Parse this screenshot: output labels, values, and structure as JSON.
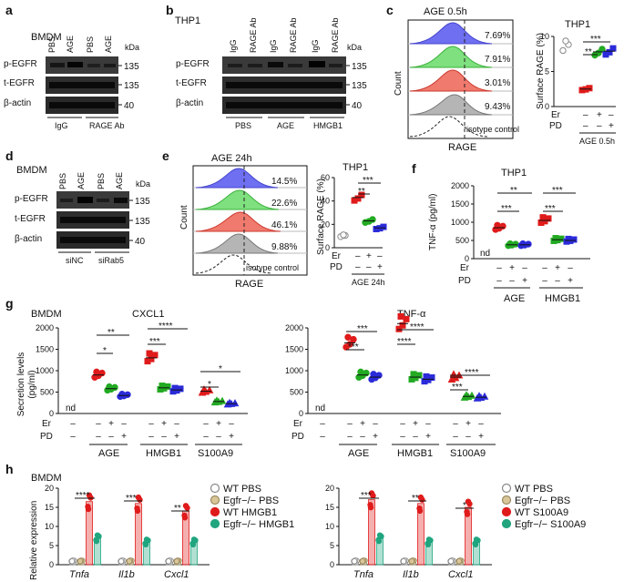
{
  "panels": {
    "a": {
      "letter": "a",
      "cell": "BMDM",
      "kda": "kDa",
      "lanes": [
        "PBS",
        "AGE",
        "PBS",
        "AGE"
      ],
      "rows": [
        {
          "name": "p-EGFR",
          "mw": "135"
        },
        {
          "name": "t-EGFR",
          "mw": "135"
        },
        {
          "name": "β-actin",
          "mw": "40"
        }
      ],
      "groups": [
        "IgG",
        "RAGE  Ab"
      ]
    },
    "b": {
      "letter": "b",
      "cell": "THP1",
      "kda": "kDa",
      "lanes": [
        "IgG",
        "RAGE Ab",
        "IgG",
        "RAGE Ab",
        "IgG",
        "RAGE Ab"
      ],
      "rows": [
        {
          "name": "p-EGFR",
          "mw": "135"
        },
        {
          "name": "t-EGFR",
          "mw": "135"
        },
        {
          "name": "β-actin",
          "mw": "40"
        }
      ],
      "groups": [
        "PBS",
        "AGE",
        "HMGB1"
      ]
    },
    "c": {
      "letter": "c",
      "title": "AGE 0.5h",
      "ylabel": "Count",
      "xlabel": "RAGE",
      "pcts": [
        {
          "v": "7.69%",
          "color": "#2b2bd9"
        },
        {
          "v": "7.91%",
          "color": "#22aa22"
        },
        {
          "v": "3.01%",
          "color": "#e01b1b"
        },
        {
          "v": "9.43%",
          "color": "#666666"
        }
      ],
      "isotype": "isotype control"
    },
    "c_plot": {
      "cell": "THP1",
      "ylabel": "Surface RAGE (%)",
      "yticks": [
        "0",
        "5",
        "10"
      ],
      "sig": [
        "***",
        "**"
      ],
      "er_label": "Er",
      "pd_label": "PD",
      "er_marks": [
        "–",
        "+",
        "–"
      ],
      "pd_marks": [
        "–",
        "–",
        "+"
      ],
      "group": "AGE 0.5h"
    },
    "d": {
      "letter": "d",
      "cell": "BMDM",
      "kda": "kDa",
      "lanes": [
        "PBS",
        "AGE",
        "PBS",
        "AGE"
      ],
      "rows": [
        {
          "name": "p-EGFR",
          "mw": "135"
        },
        {
          "name": "t-EGFR",
          "mw": "135"
        },
        {
          "name": "β-actin",
          "mw": "40"
        }
      ],
      "groups": [
        "siNC",
        "siRab5"
      ]
    },
    "e": {
      "letter": "e",
      "title": "AGE 24h",
      "ylabel": "Count",
      "xlabel": "RAGE",
      "pcts": [
        {
          "v": "14.5%",
          "color": "#2b2bd9"
        },
        {
          "v": "22.6%",
          "color": "#22aa22"
        },
        {
          "v": "46.1%",
          "color": "#e01b1b"
        },
        {
          "v": "9.88%",
          "color": "#666666"
        }
      ],
      "isotype": "isotype control"
    },
    "e_plot": {
      "cell": "THP1",
      "ylabel": "Surface RAGE (%)",
      "yticks": [
        "0",
        "20",
        "40",
        "60"
      ],
      "sig": [
        "***",
        "**"
      ],
      "er_label": "Er",
      "pd_label": "PD",
      "er_marks": [
        "–",
        "+",
        "–"
      ],
      "pd_marks": [
        "–",
        "–",
        "+"
      ],
      "group": "AGE 24h"
    },
    "f": {
      "letter": "f",
      "cell": "THP1",
      "ylabel": "TNF-α (pg/ml)",
      "yticks": [
        "0",
        "500",
        "1000",
        "1500",
        "2000"
      ],
      "nd": "nd",
      "sig": [
        "**",
        "***",
        "***",
        "***"
      ],
      "er_label": "Er",
      "pd_label": "PD",
      "er_marks": [
        "–",
        "+",
        "–",
        "–",
        "+",
        "–"
      ],
      "pd_marks": [
        "–",
        "–",
        "+",
        "–",
        "–",
        "+"
      ],
      "groups": [
        "AGE",
        "HMGB1"
      ]
    },
    "g": {
      "letter": "g",
      "cell": "BMDM",
      "ylabel": "Secretion levels\n(pg/ml)",
      "left": {
        "title": "CXCL1",
        "yticks": [
          "0",
          "500",
          "1000",
          "1500",
          "2000"
        ],
        "sig": [
          "**",
          "*",
          "****",
          "***",
          "*",
          "*"
        ]
      },
      "right": {
        "title": "TNF-α",
        "yticks": [
          "0",
          "500",
          "1000",
          "1500",
          "2000"
        ],
        "sig": [
          "***",
          "***",
          "****",
          "****",
          "****",
          "***"
        ]
      },
      "nd": "nd",
      "er_label": "Er",
      "pd_label": "PD",
      "er_marks": [
        "–",
        "–",
        "+",
        "–",
        "–",
        "+",
        "–",
        "–",
        "+",
        "–"
      ],
      "pd_marks": [
        "–",
        "–",
        "–",
        "+",
        "–",
        "–",
        "+",
        "–",
        "–",
        "+"
      ],
      "groups": [
        "AGE",
        "HMGB1",
        "S100A9"
      ]
    },
    "h": {
      "letter": "h",
      "cell": "BMDM",
      "ylabel": "Relative expression",
      "left": {
        "yticks": [
          "0",
          "5",
          "10",
          "15",
          "20"
        ],
        "genes": [
          "Tnfa",
          "Il1b",
          "Cxcl1"
        ],
        "sig": [
          "****",
          "***",
          "**"
        ],
        "legend": [
          {
            "label": "WT PBS",
            "color": "#ffffff"
          },
          {
            "label": "Egfr−/− PBS",
            "color": "#d9c79a"
          },
          {
            "label": "WT HMGB1",
            "color": "#e01b1b"
          },
          {
            "label": "Egfr−/− HMGB1",
            "color": "#20a57f"
          }
        ]
      },
      "right": {
        "yticks": [
          "0",
          "5",
          "10",
          "15",
          "20"
        ],
        "genes": [
          "Tnfa",
          "Il1b",
          "Cxcl1"
        ],
        "sig": [
          "***",
          "**",
          "*"
        ],
        "legend": [
          {
            "label": "WT PBS",
            "color": "#ffffff"
          },
          {
            "label": "Egfr−/− PBS",
            "color": "#d9c79a"
          },
          {
            "label": "WT S100A9",
            "color": "#e01b1b"
          },
          {
            "label": "Egfr−/− S100A9",
            "color": "#20a57f"
          }
        ]
      }
    }
  },
  "chart_data": [
    {
      "type": "scatter",
      "panel": "c",
      "title": "THP1",
      "ylabel": "Surface RAGE (%)",
      "ylim": [
        0,
        10
      ],
      "categories": [
        "AGE",
        "AGE+Er",
        "AGE+PD"
      ],
      "values": [
        2.5,
        7.8,
        7.9
      ],
      "baseline": 8.5
    },
    {
      "type": "scatter",
      "panel": "e",
      "title": "THP1",
      "ylabel": "Surface RAGE (%)",
      "ylim": [
        0,
        60
      ],
      "categories": [
        "AGE",
        "AGE+Er",
        "AGE+PD"
      ],
      "values": [
        43,
        23,
        17
      ],
      "baseline": 10
    },
    {
      "type": "scatter",
      "panel": "f",
      "title": "THP1",
      "ylabel": "TNF-α (pg/ml)",
      "ylim": [
        0,
        2000
      ],
      "categories": [
        "AGE",
        "AGE+Er",
        "AGE+PD",
        "HMGB1",
        "HMGB1+Er",
        "HMGB1+PD"
      ],
      "values": [
        850,
        380,
        380,
        1050,
        520,
        500
      ]
    },
    {
      "type": "scatter",
      "panel": "g-CXCL1",
      "title": "CXCL1",
      "ylabel": "Secretion levels (pg/ml)",
      "ylim": [
        0,
        2000
      ],
      "categories": [
        "nd",
        "AGE",
        "AGE+Er",
        "AGE+PD",
        "HMGB1",
        "HMGB1+Er",
        "HMGB1+PD",
        "S100A9",
        "S100A9+Er",
        "S100A9+PD"
      ],
      "values": [
        0,
        900,
        580,
        420,
        1300,
        600,
        550,
        520,
        280,
        230
      ]
    },
    {
      "type": "scatter",
      "panel": "g-TNF",
      "title": "TNF-α",
      "ylabel": "Secretion levels (pg/ml)",
      "ylim": [
        0,
        2000
      ],
      "categories": [
        "nd",
        "AGE",
        "AGE+Er",
        "AGE+PD",
        "HMGB1",
        "HMGB1+Er",
        "HMGB1+PD",
        "S100A9",
        "S100A9+Er",
        "S100A9+PD"
      ],
      "values": [
        0,
        1650,
        900,
        850,
        2100,
        850,
        800,
        850,
        400,
        380
      ]
    },
    {
      "type": "bar",
      "panel": "h-HMGB1",
      "ylabel": "Relative expression",
      "ylim": [
        0,
        20
      ],
      "categories": [
        "Tnfa",
        "Il1b",
        "Cxcl1"
      ],
      "series": [
        {
          "name": "WT PBS",
          "values": [
            1,
            1,
            1
          ]
        },
        {
          "name": "Egfr−/− PBS",
          "values": [
            1,
            1,
            1
          ]
        },
        {
          "name": "WT HMGB1",
          "values": [
            16.5,
            16,
            14
          ]
        },
        {
          "name": "Egfr−/− HMGB1",
          "values": [
            7,
            6,
            6
          ]
        }
      ]
    },
    {
      "type": "bar",
      "panel": "h-S100A9",
      "ylabel": "Relative expression",
      "ylim": [
        0,
        20
      ],
      "categories": [
        "Tnfa",
        "Il1b",
        "Cxcl1"
      ],
      "series": [
        {
          "name": "WT PBS",
          "values": [
            1,
            1,
            1
          ]
        },
        {
          "name": "Egfr−/− PBS",
          "values": [
            1,
            1,
            1
          ]
        },
        {
          "name": "WT S100A9",
          "values": [
            17,
            16,
            15
          ]
        },
        {
          "name": "Egfr−/− S100A9",
          "values": [
            7,
            6,
            6
          ]
        }
      ]
    }
  ]
}
